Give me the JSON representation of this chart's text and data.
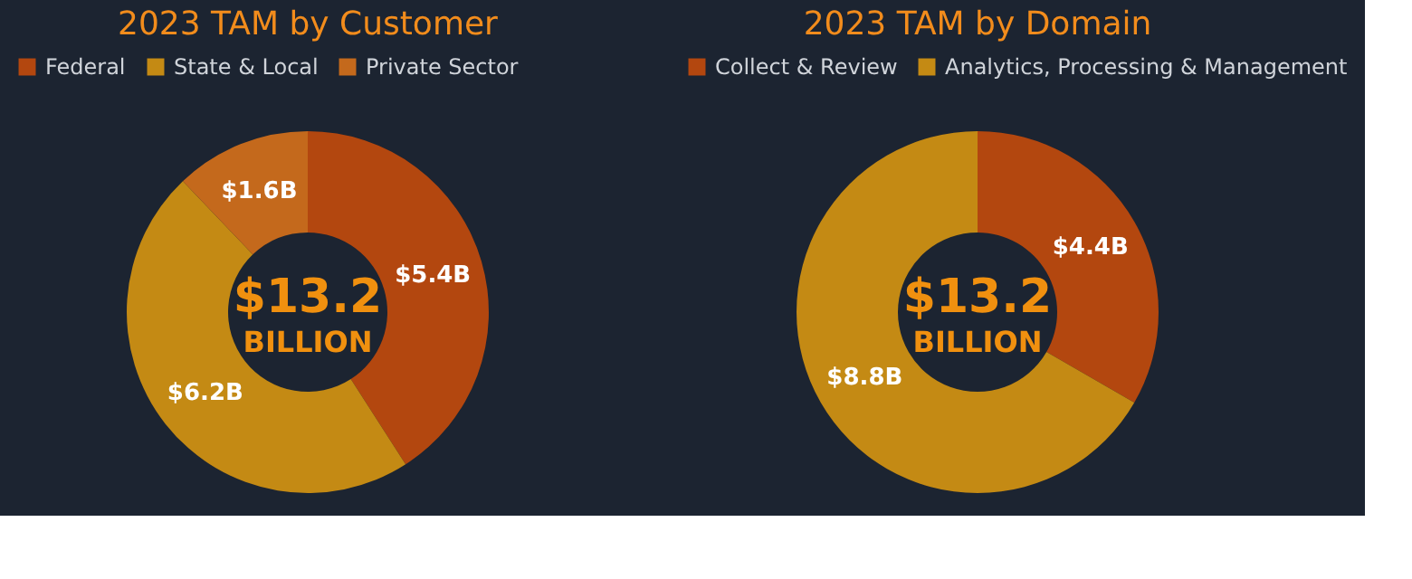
{
  "chart_data": [
    {
      "type": "donut",
      "title": "2023 TAM by Customer",
      "categories": [
        "Federal",
        "State & Local",
        "Private Sector"
      ],
      "values": [
        5.4,
        6.2,
        1.6
      ],
      "colors": [
        "#b3470f",
        "#c48a14",
        "#c4691c"
      ],
      "value_labels": [
        "$5.4B",
        "$6.2B",
        "$1.6B"
      ],
      "annotations": [
        "$13.2",
        "BILLION"
      ],
      "legend": "top"
    },
    {
      "type": "donut",
      "title": "2023 TAM by Domain",
      "categories": [
        "Collect & Review",
        "Analytics, Processing & Management"
      ],
      "values": [
        4.4,
        8.8
      ],
      "colors": [
        "#b3470f",
        "#c48a14"
      ],
      "value_labels": [
        "$4.4B",
        "$8.8B"
      ],
      "annotations": [
        "$13.2",
        "BILLION"
      ],
      "legend": "top"
    }
  ]
}
